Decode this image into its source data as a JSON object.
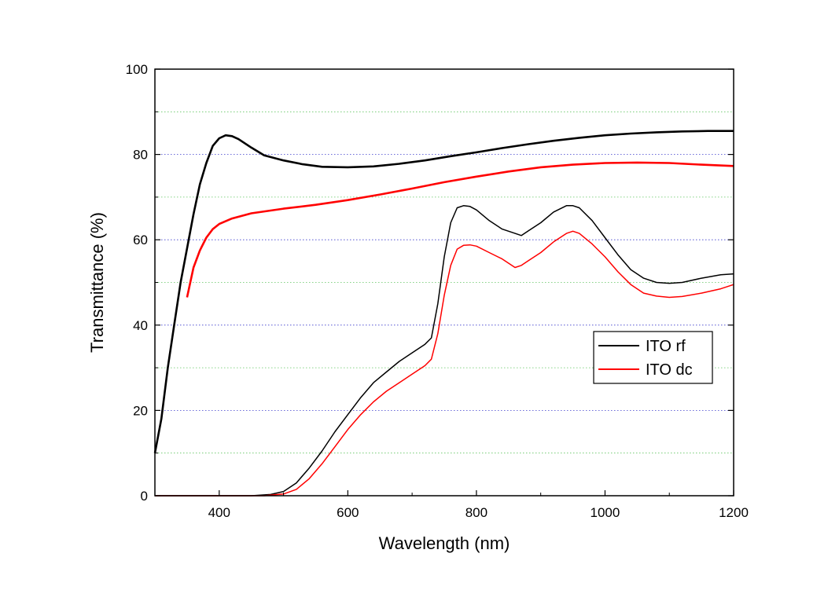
{
  "chart_data": {
    "type": "line",
    "title": "",
    "xlabel": "Wavelength (nm)",
    "ylabel": "Transmittance (%)",
    "xlim": [
      300,
      1200
    ],
    "ylim": [
      0,
      100
    ],
    "x_ticks": [
      400,
      600,
      800,
      1000,
      1200
    ],
    "y_ticks": [
      0,
      20,
      40,
      60,
      80,
      100
    ],
    "grid": true,
    "grid_major_color": "#3a3acc",
    "grid_minor_color": "#5fc45f",
    "legend_position": "right-middle",
    "series": [
      {
        "name": "ITO rf",
        "color": "#000000",
        "points": [
          [
            300,
            10
          ],
          [
            310,
            18
          ],
          [
            320,
            30
          ],
          [
            330,
            40
          ],
          [
            340,
            50
          ],
          [
            350,
            58
          ],
          [
            360,
            66
          ],
          [
            370,
            73
          ],
          [
            380,
            78
          ],
          [
            390,
            82
          ],
          [
            400,
            83.8
          ],
          [
            410,
            84.5
          ],
          [
            420,
            84.3
          ],
          [
            430,
            83.6
          ],
          [
            450,
            81.6
          ],
          [
            470,
            79.8
          ],
          [
            500,
            78.6
          ],
          [
            530,
            77.7
          ],
          [
            560,
            77.1
          ],
          [
            600,
            77.0
          ],
          [
            640,
            77.2
          ],
          [
            680,
            77.8
          ],
          [
            720,
            78.6
          ],
          [
            760,
            79.6
          ],
          [
            800,
            80.5
          ],
          [
            840,
            81.5
          ],
          [
            880,
            82.4
          ],
          [
            920,
            83.2
          ],
          [
            960,
            83.9
          ],
          [
            1000,
            84.5
          ],
          [
            1040,
            84.9
          ],
          [
            1080,
            85.2
          ],
          [
            1120,
            85.4
          ],
          [
            1160,
            85.5
          ],
          [
            1200,
            85.5
          ]
        ]
      },
      {
        "name": "ITO dc",
        "color": "#ff0000",
        "points": [
          [
            350,
            46.5
          ],
          [
            355,
            50
          ],
          [
            360,
            53.5
          ],
          [
            370,
            57.5
          ],
          [
            380,
            60.5
          ],
          [
            390,
            62.5
          ],
          [
            400,
            63.7
          ],
          [
            420,
            65
          ],
          [
            450,
            66.2
          ],
          [
            500,
            67.3
          ],
          [
            550,
            68.2
          ],
          [
            600,
            69.3
          ],
          [
            650,
            70.6
          ],
          [
            700,
            72
          ],
          [
            750,
            73.5
          ],
          [
            800,
            74.8
          ],
          [
            850,
            76
          ],
          [
            900,
            77
          ],
          [
            950,
            77.6
          ],
          [
            1000,
            78
          ],
          [
            1050,
            78.1
          ],
          [
            1100,
            78
          ],
          [
            1150,
            77.6
          ],
          [
            1200,
            77.3
          ]
        ]
      },
      {
        "name": "",
        "color": "#000000",
        "points": [
          [
            300,
            0
          ],
          [
            450,
            0
          ],
          [
            480,
            0.3
          ],
          [
            500,
            1
          ],
          [
            520,
            3
          ],
          [
            540,
            6.5
          ],
          [
            560,
            10.5
          ],
          [
            580,
            15
          ],
          [
            600,
            19
          ],
          [
            620,
            23
          ],
          [
            640,
            26.5
          ],
          [
            660,
            29
          ],
          [
            680,
            31.5
          ],
          [
            700,
            33.5
          ],
          [
            720,
            35.5
          ],
          [
            730,
            37
          ],
          [
            740,
            45
          ],
          [
            750,
            56
          ],
          [
            760,
            64
          ],
          [
            770,
            67.5
          ],
          [
            780,
            68
          ],
          [
            790,
            67.8
          ],
          [
            800,
            67
          ],
          [
            820,
            64.5
          ],
          [
            840,
            62.5
          ],
          [
            860,
            61.5
          ],
          [
            870,
            61
          ],
          [
            880,
            62
          ],
          [
            900,
            64
          ],
          [
            920,
            66.5
          ],
          [
            940,
            68
          ],
          [
            950,
            68
          ],
          [
            960,
            67.5
          ],
          [
            980,
            64.5
          ],
          [
            1000,
            60.5
          ],
          [
            1020,
            56.5
          ],
          [
            1040,
            53
          ],
          [
            1060,
            51
          ],
          [
            1080,
            50
          ],
          [
            1100,
            49.8
          ],
          [
            1120,
            50
          ],
          [
            1150,
            51
          ],
          [
            1180,
            51.8
          ],
          [
            1200,
            52
          ]
        ]
      },
      {
        "name": "",
        "color": "#ff0000",
        "points": [
          [
            300,
            0
          ],
          [
            470,
            0
          ],
          [
            500,
            0.4
          ],
          [
            520,
            1.5
          ],
          [
            540,
            4
          ],
          [
            560,
            7.5
          ],
          [
            580,
            11.5
          ],
          [
            600,
            15.5
          ],
          [
            620,
            19
          ],
          [
            640,
            22
          ],
          [
            660,
            24.5
          ],
          [
            680,
            26.5
          ],
          [
            700,
            28.5
          ],
          [
            720,
            30.5
          ],
          [
            730,
            32
          ],
          [
            740,
            38
          ],
          [
            750,
            47
          ],
          [
            760,
            54
          ],
          [
            770,
            57.8
          ],
          [
            780,
            58.7
          ],
          [
            790,
            58.8
          ],
          [
            800,
            58.5
          ],
          [
            820,
            57
          ],
          [
            840,
            55.5
          ],
          [
            860,
            53.5
          ],
          [
            870,
            54
          ],
          [
            880,
            55
          ],
          [
            900,
            57
          ],
          [
            920,
            59.5
          ],
          [
            940,
            61.5
          ],
          [
            950,
            62
          ],
          [
            960,
            61.5
          ],
          [
            980,
            59
          ],
          [
            1000,
            56
          ],
          [
            1020,
            52.5
          ],
          [
            1040,
            49.5
          ],
          [
            1060,
            47.5
          ],
          [
            1080,
            46.8
          ],
          [
            1100,
            46.5
          ],
          [
            1120,
            46.7
          ],
          [
            1150,
            47.5
          ],
          [
            1180,
            48.5
          ],
          [
            1200,
            49.5
          ]
        ]
      }
    ]
  }
}
